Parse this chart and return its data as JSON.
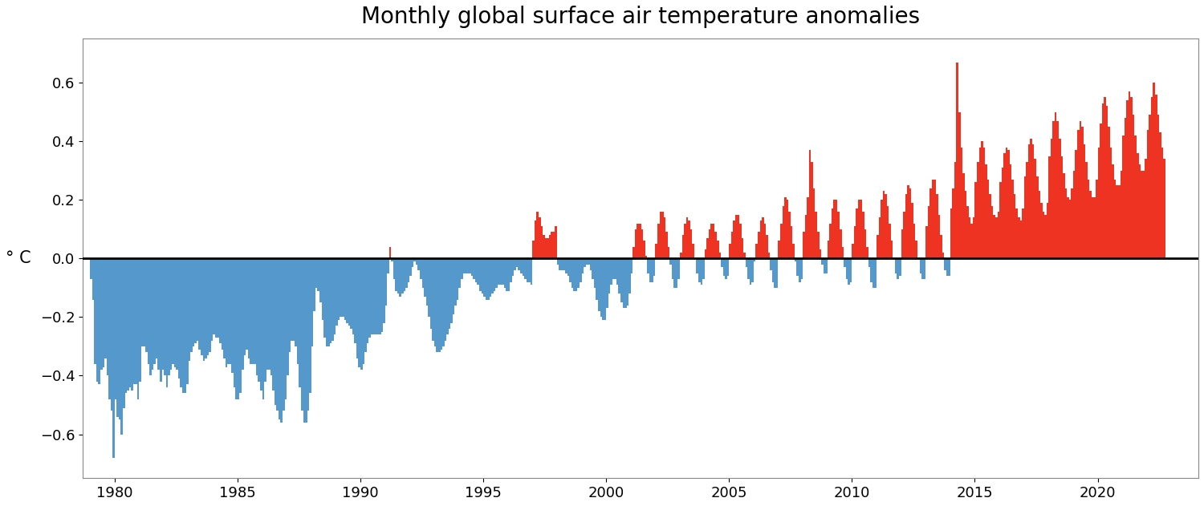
{
  "title": "Monthly global surface air temperature anomalies",
  "ylabel": "° C",
  "ylim": [
    -0.75,
    0.75
  ],
  "yticks": [
    -0.6,
    -0.4,
    -0.2,
    0,
    0.2,
    0.4,
    0.6
  ],
  "color_positive": "#ee3322",
  "color_negative": "#5599cc",
  "color_zero_line": "#000000",
  "background_color": "#ffffff",
  "start_year": 1979,
  "start_month": 1,
  "values": [
    -0.07,
    -0.14,
    -0.36,
    -0.42,
    -0.43,
    -0.38,
    -0.37,
    -0.34,
    -0.4,
    -0.48,
    -0.52,
    -0.68,
    -0.48,
    -0.54,
    -0.55,
    -0.6,
    -0.51,
    -0.46,
    -0.45,
    -0.44,
    -0.45,
    -0.43,
    -0.43,
    -0.48,
    -0.42,
    -0.3,
    -0.3,
    -0.32,
    -0.36,
    -0.4,
    -0.38,
    -0.36,
    -0.34,
    -0.38,
    -0.42,
    -0.38,
    -0.4,
    -0.44,
    -0.4,
    -0.38,
    -0.36,
    -0.37,
    -0.38,
    -0.41,
    -0.44,
    -0.46,
    -0.46,
    -0.43,
    -0.35,
    -0.32,
    -0.3,
    -0.29,
    -0.28,
    -0.31,
    -0.33,
    -0.35,
    -0.34,
    -0.33,
    -0.32,
    -0.28,
    -0.26,
    -0.27,
    -0.27,
    -0.29,
    -0.31,
    -0.34,
    -0.37,
    -0.36,
    -0.36,
    -0.39,
    -0.44,
    -0.48,
    -0.48,
    -0.46,
    -0.38,
    -0.33,
    -0.31,
    -0.34,
    -0.36,
    -0.36,
    -0.36,
    -0.4,
    -0.42,
    -0.45,
    -0.48,
    -0.42,
    -0.38,
    -0.38,
    -0.4,
    -0.45,
    -0.5,
    -0.52,
    -0.55,
    -0.56,
    -0.52,
    -0.48,
    -0.4,
    -0.32,
    -0.28,
    -0.28,
    -0.3,
    -0.36,
    -0.44,
    -0.52,
    -0.56,
    -0.56,
    -0.52,
    -0.46,
    -0.3,
    -0.18,
    -0.1,
    -0.11,
    -0.15,
    -0.21,
    -0.27,
    -0.3,
    -0.3,
    -0.29,
    -0.28,
    -0.26,
    -0.23,
    -0.21,
    -0.2,
    -0.2,
    -0.21,
    -0.22,
    -0.23,
    -0.24,
    -0.26,
    -0.29,
    -0.34,
    -0.37,
    -0.38,
    -0.36,
    -0.32,
    -0.29,
    -0.27,
    -0.26,
    -0.26,
    -0.26,
    -0.26,
    -0.26,
    -0.25,
    -0.22,
    -0.16,
    -0.05,
    0.04,
    -0.01,
    -0.07,
    -0.11,
    -0.12,
    -0.13,
    -0.12,
    -0.11,
    -0.1,
    -0.08,
    -0.06,
    -0.03,
    -0.01,
    -0.02,
    -0.04,
    -0.07,
    -0.1,
    -0.13,
    -0.16,
    -0.2,
    -0.24,
    -0.28,
    -0.3,
    -0.32,
    -0.32,
    -0.31,
    -0.3,
    -0.28,
    -0.26,
    -0.24,
    -0.22,
    -0.19,
    -0.16,
    -0.14,
    -0.1,
    -0.07,
    -0.05,
    -0.05,
    -0.05,
    -0.05,
    -0.06,
    -0.07,
    -0.08,
    -0.09,
    -0.11,
    -0.12,
    -0.13,
    -0.14,
    -0.14,
    -0.13,
    -0.12,
    -0.11,
    -0.1,
    -0.09,
    -0.09,
    -0.09,
    -0.1,
    -0.11,
    -0.11,
    -0.08,
    -0.06,
    -0.04,
    -0.03,
    -0.04,
    -0.05,
    -0.06,
    -0.07,
    -0.08,
    -0.08,
    -0.09,
    0.06,
    0.13,
    0.16,
    0.14,
    0.11,
    0.08,
    0.07,
    0.07,
    0.08,
    0.09,
    0.09,
    0.11,
    -0.02,
    -0.04,
    -0.04,
    -0.04,
    -0.05,
    -0.06,
    -0.08,
    -0.1,
    -0.11,
    -0.11,
    -0.1,
    -0.08,
    -0.05,
    -0.03,
    -0.02,
    -0.02,
    -0.04,
    -0.07,
    -0.1,
    -0.14,
    -0.18,
    -0.2,
    -0.21,
    -0.21,
    -0.17,
    -0.12,
    -0.09,
    -0.07,
    -0.07,
    -0.09,
    -0.12,
    -0.15,
    -0.17,
    -0.17,
    -0.16,
    -0.12,
    -0.05,
    0.04,
    0.1,
    0.12,
    0.12,
    0.1,
    0.06,
    0.01,
    -0.05,
    -0.08,
    -0.08,
    -0.06,
    0.05,
    0.12,
    0.16,
    0.16,
    0.14,
    0.09,
    0.04,
    -0.02,
    -0.07,
    -0.1,
    -0.1,
    -0.07,
    0.02,
    0.08,
    0.12,
    0.14,
    0.13,
    0.1,
    0.05,
    0.0,
    -0.05,
    -0.08,
    -0.09,
    -0.07,
    0.03,
    0.07,
    0.1,
    0.12,
    0.12,
    0.09,
    0.06,
    0.02,
    -0.03,
    -0.06,
    -0.07,
    -0.06,
    0.05,
    0.09,
    0.13,
    0.15,
    0.15,
    0.12,
    0.07,
    0.02,
    -0.03,
    -0.07,
    -0.09,
    -0.08,
    -0.01,
    0.05,
    0.09,
    0.13,
    0.14,
    0.12,
    0.08,
    0.02,
    -0.04,
    -0.08,
    -0.1,
    -0.1,
    0.06,
    0.12,
    0.18,
    0.21,
    0.2,
    0.16,
    0.11,
    0.05,
    -0.01,
    -0.06,
    -0.08,
    -0.07,
    0.09,
    0.15,
    0.21,
    0.37,
    0.33,
    0.24,
    0.16,
    0.09,
    0.03,
    -0.02,
    -0.05,
    -0.05,
    0.06,
    0.12,
    0.17,
    0.2,
    0.2,
    0.16,
    0.1,
    0.04,
    -0.03,
    -0.07,
    -0.09,
    -0.08,
    0.05,
    0.11,
    0.17,
    0.2,
    0.2,
    0.16,
    0.1,
    0.04,
    -0.03,
    -0.08,
    -0.1,
    -0.1,
    0.08,
    0.14,
    0.2,
    0.23,
    0.22,
    0.18,
    0.12,
    0.06,
    0.0,
    -0.05,
    -0.07,
    -0.06,
    0.1,
    0.16,
    0.22,
    0.25,
    0.24,
    0.19,
    0.12,
    0.06,
    0.0,
    -0.05,
    -0.07,
    -0.07,
    0.11,
    0.18,
    0.24,
    0.27,
    0.27,
    0.22,
    0.15,
    0.08,
    0.02,
    -0.04,
    -0.06,
    -0.06,
    0.17,
    0.24,
    0.33,
    0.67,
    0.5,
    0.38,
    0.29,
    0.23,
    0.18,
    0.14,
    0.12,
    0.14,
    0.26,
    0.33,
    0.38,
    0.4,
    0.38,
    0.32,
    0.27,
    0.22,
    0.18,
    0.15,
    0.14,
    0.16,
    0.26,
    0.31,
    0.36,
    0.38,
    0.37,
    0.32,
    0.27,
    0.22,
    0.17,
    0.14,
    0.13,
    0.17,
    0.28,
    0.33,
    0.39,
    0.41,
    0.39,
    0.34,
    0.28,
    0.23,
    0.19,
    0.16,
    0.15,
    0.19,
    0.35,
    0.41,
    0.47,
    0.5,
    0.47,
    0.41,
    0.35,
    0.29,
    0.24,
    0.21,
    0.2,
    0.24,
    0.3,
    0.37,
    0.44,
    0.47,
    0.45,
    0.39,
    0.33,
    0.27,
    0.23,
    0.21,
    0.21,
    0.27,
    0.38,
    0.46,
    0.53,
    0.55,
    0.52,
    0.45,
    0.38,
    0.32,
    0.27,
    0.25,
    0.25,
    0.3,
    0.42,
    0.48,
    0.54,
    0.57,
    0.55,
    0.49,
    0.42,
    0.36,
    0.32,
    0.3,
    0.3,
    0.34,
    0.44,
    0.49,
    0.55,
    0.6,
    0.56,
    0.49,
    0.43,
    0.38,
    0.34
  ]
}
